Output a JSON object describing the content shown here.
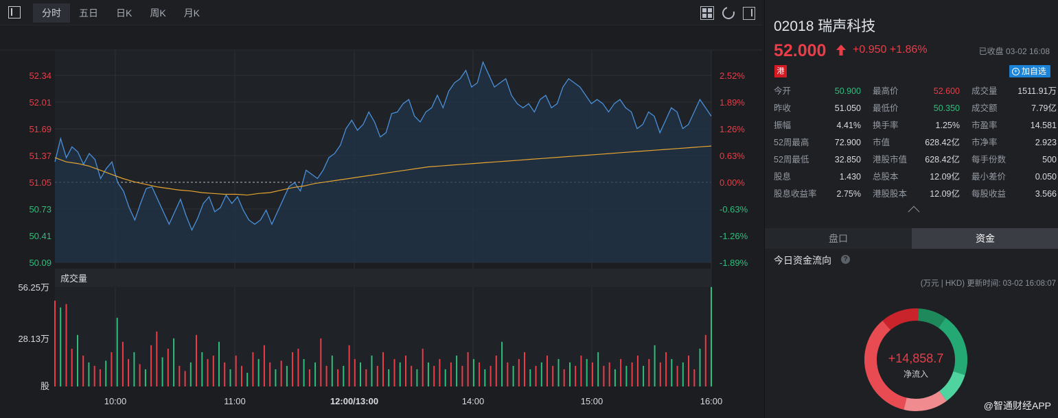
{
  "toolbar": {
    "tabs": [
      {
        "label": "分时",
        "active": true
      },
      {
        "label": "五日",
        "active": false
      },
      {
        "label": "日K",
        "active": false
      },
      {
        "label": "周K",
        "active": false
      },
      {
        "label": "月K",
        "active": false
      }
    ],
    "icons": [
      "sidebar-toggle-icon",
      "grid-layout-icon",
      "refresh-icon",
      "panel-toggle-icon"
    ]
  },
  "chart": {
    "volume_title": "成交量",
    "colors": {
      "price_line": "#4a90d9",
      "avg_line": "#e7a530",
      "up": "#ea3d48",
      "down": "#2fbf7c",
      "neutral": "#d7dbe1"
    }
  },
  "chart_data": {
    "type": "line",
    "prev_close": 51.05,
    "y_ticks": [
      "52.34",
      "52.01",
      "51.69",
      "51.37",
      "51.05",
      "50.73",
      "50.41",
      "50.09"
    ],
    "pct_ticks": [
      "2.52%",
      "1.89%",
      "1.26%",
      "0.63%",
      "0.00%",
      "-0.63%",
      "-1.26%",
      "-1.89%"
    ],
    "x_ticks": [
      "10:00",
      "11:00",
      "12:00/13:00",
      "14:00",
      "15:00",
      "16:00"
    ],
    "ylim": [
      50.09,
      52.34
    ],
    "series": [
      {
        "values": [
          51.3,
          51.58,
          51.35,
          51.48,
          51.42,
          51.27,
          51.4,
          51.33,
          51.1,
          51.22,
          51.3,
          51.05,
          50.95,
          50.75,
          50.6,
          50.8,
          50.98,
          51.0,
          50.85,
          50.7,
          50.55,
          50.7,
          50.85,
          50.65,
          50.48,
          50.62,
          50.8,
          50.88,
          50.7,
          50.75,
          50.9,
          50.8,
          50.88,
          50.72,
          50.6,
          50.55,
          50.6,
          50.72,
          50.55,
          50.7,
          50.85,
          51.0,
          51.05,
          50.95,
          51.2,
          51.15,
          51.1,
          51.2,
          51.35,
          51.4,
          51.5,
          51.7,
          51.8,
          51.68,
          51.75,
          51.9,
          51.78,
          51.6,
          51.65,
          51.88,
          51.9,
          52.0,
          52.05,
          51.85,
          51.78,
          51.9,
          51.95,
          52.1,
          51.95,
          52.15,
          52.25,
          52.3,
          52.4,
          52.2,
          52.25,
          52.5,
          52.35,
          52.2,
          52.25,
          52.3,
          52.1,
          52.0,
          51.95,
          52.0,
          51.9,
          52.05,
          52.1,
          51.95,
          52.0,
          52.2,
          52.3,
          52.25,
          52.2,
          52.1,
          52.0,
          52.05,
          52.0,
          51.9,
          52.0,
          52.05,
          51.95,
          51.9,
          51.7,
          51.75,
          51.9,
          51.85,
          51.65,
          51.8,
          51.95,
          51.9,
          51.7,
          51.75,
          51.9,
          52.05,
          51.95,
          51.85
        ],
        "name": ""
      },
      {
        "values": [
          51.35,
          51.3,
          51.28,
          51.25,
          51.2,
          51.15,
          51.1,
          51.06,
          51.03,
          51.0,
          50.98,
          50.96,
          50.95,
          50.93,
          50.92,
          50.91,
          50.91,
          50.9,
          50.92,
          50.93,
          50.96,
          50.99,
          51.01,
          51.04,
          51.06,
          51.08,
          51.1,
          51.12,
          51.14,
          51.16,
          51.18,
          51.2,
          51.22,
          51.24,
          51.25,
          51.26,
          51.27,
          51.28,
          51.29,
          51.3,
          51.31,
          51.32,
          51.33,
          51.34,
          51.35,
          51.36,
          51.37,
          51.38,
          51.39,
          51.4,
          51.41,
          51.42,
          51.43,
          51.44,
          51.45,
          51.46,
          51.47,
          51.48,
          51.49
        ],
        "name": ""
      }
    ],
    "volume_ylabels": [
      "56.25万",
      "28.13万",
      "股"
    ],
    "volume_max": 56.25,
    "volume_values": [
      50,
      46,
      48,
      22,
      30,
      18,
      14,
      12,
      10,
      15,
      20,
      40,
      26,
      16,
      20,
      13,
      10,
      24,
      32,
      17,
      22,
      28,
      12,
      9,
      14,
      30,
      20,
      16,
      18,
      26,
      14,
      10,
      18,
      12,
      8,
      20,
      16,
      24,
      14,
      10,
      15,
      12,
      20,
      22,
      16,
      10,
      14,
      28,
      12,
      18,
      10,
      12,
      24,
      16,
      14,
      10,
      18,
      12,
      20,
      10,
      16,
      14,
      18,
      12,
      10,
      22,
      14,
      12,
      16,
      10,
      14,
      18,
      12,
      20,
      16,
      14,
      10,
      12,
      18,
      26,
      14,
      12,
      16,
      20,
      10,
      12,
      14,
      18,
      12,
      16,
      10,
      14,
      12,
      18,
      16,
      14,
      20,
      12,
      14,
      10,
      16,
      12,
      14,
      18,
      12,
      16,
      24,
      14,
      20,
      16,
      12,
      14,
      18,
      10,
      22,
      30,
      58
    ]
  },
  "stock": {
    "title": "02018 瑞声科技",
    "price": "52.000",
    "change": "+0.950  +1.86%",
    "status": "已收盘 03-02 16:08",
    "flag": "港",
    "add_label": "加自选",
    "add_icon": "plus-circle-icon",
    "stats": [
      [
        {
          "k": "今开",
          "v": "50.900",
          "c": "down"
        },
        {
          "k": "最高价",
          "v": "52.600",
          "c": "up"
        },
        {
          "k": "成交量",
          "v": "1511.91万",
          "c": ""
        }
      ],
      [
        {
          "k": "昨收",
          "v": "51.050",
          "c": ""
        },
        {
          "k": "最低价",
          "v": "50.350",
          "c": "down"
        },
        {
          "k": "成交额",
          "v": "7.79亿",
          "c": ""
        }
      ],
      [
        {
          "k": "振幅",
          "v": "4.41%",
          "c": ""
        },
        {
          "k": "换手率",
          "v": "1.25%",
          "c": ""
        },
        {
          "k": "市盈率",
          "v": "14.581",
          "c": ""
        }
      ],
      [
        {
          "k": "52周最高",
          "v": "72.900",
          "c": ""
        },
        {
          "k": "市值",
          "v": "628.42亿",
          "c": ""
        },
        {
          "k": "市净率",
          "v": "2.923",
          "c": ""
        }
      ],
      [
        {
          "k": "52周最低",
          "v": "32.850",
          "c": ""
        },
        {
          "k": "港股市值",
          "v": "628.42亿",
          "c": ""
        },
        {
          "k": "每手份数",
          "v": "500",
          "c": ""
        }
      ],
      [
        {
          "k": "股息",
          "v": "1.430",
          "c": ""
        },
        {
          "k": "总股本",
          "v": "12.09亿",
          "c": ""
        },
        {
          "k": "最小差价",
          "v": "0.050",
          "c": ""
        }
      ],
      [
        {
          "k": "股息收益率",
          "v": "2.75%",
          "c": ""
        },
        {
          "k": "港股股本",
          "v": "12.09亿",
          "c": ""
        },
        {
          "k": "每股收益",
          "v": "3.566",
          "c": ""
        }
      ]
    ]
  },
  "subtabs": [
    {
      "label": "盘口",
      "active": false
    },
    {
      "label": "资金",
      "active": true
    }
  ],
  "flow": {
    "title": "今日资金流向",
    "help": "?",
    "unit_line": "(万元 | HKD) 更新时间: 03-02 16:08:07",
    "net_value": "+14,858.7",
    "net_label": "净流入",
    "segments": [
      {
        "color": "#1e8a5c",
        "fraction": 0.09
      },
      {
        "color": "#24a874",
        "fraction": 0.2
      },
      {
        "color": "#4fd39f",
        "fraction": 0.1
      },
      {
        "color": "#f08c90",
        "fraction": 0.14
      },
      {
        "color": "#e84b52",
        "fraction": 0.35
      },
      {
        "color": "#c9242c",
        "fraction": 0.12
      }
    ]
  },
  "watermark": "@智通财经APP"
}
